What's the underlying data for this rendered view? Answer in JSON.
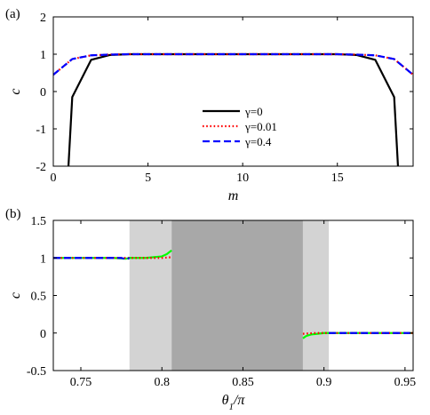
{
  "chart_data": [
    {
      "panel": "(a)",
      "type": "line",
      "xlabel": "m",
      "ylabel": "c",
      "xlim": [
        0,
        19
      ],
      "ylim": [
        -2,
        2
      ],
      "x_ticks": [
        0,
        5,
        10,
        15
      ],
      "y_ticks": [
        -2,
        -1,
        0,
        1,
        2
      ],
      "grid": false,
      "legend_position": "center-lower",
      "series": [
        {
          "name": "γ=0",
          "color": "#000000",
          "style": "solid",
          "x": [
            0.8,
            1,
            2,
            3,
            4,
            5,
            6,
            7,
            8,
            9,
            10,
            11,
            12,
            13,
            14,
            15,
            16,
            17,
            18,
            18.2
          ],
          "y": [
            -2.0,
            -0.15,
            0.85,
            0.98,
            1.0,
            1.0,
            1.0,
            1.0,
            1.0,
            1.0,
            1.0,
            1.0,
            1.0,
            1.0,
            1.0,
            1.0,
            0.98,
            0.85,
            -0.15,
            -2.0
          ]
        },
        {
          "name": "γ=0.01",
          "color": "#ff0000",
          "style": "dotted",
          "x": [
            0,
            1,
            2,
            3,
            4,
            5,
            6,
            7,
            8,
            9,
            10,
            11,
            12,
            13,
            14,
            15,
            16,
            17,
            18,
            19
          ],
          "y": [
            0.45,
            0.87,
            0.97,
            0.99,
            1.0,
            1.0,
            1.0,
            1.0,
            1.0,
            1.0,
            1.0,
            1.0,
            1.0,
            1.0,
            1.0,
            1.0,
            0.99,
            0.97,
            0.87,
            0.45
          ]
        },
        {
          "name": "γ=0.4",
          "color": "#0000ff",
          "style": "dashed",
          "x": [
            0,
            1,
            2,
            3,
            4,
            5,
            6,
            7,
            8,
            9,
            10,
            11,
            12,
            13,
            14,
            15,
            16,
            17,
            18,
            19
          ],
          "y": [
            0.45,
            0.87,
            0.97,
            0.99,
            1.0,
            1.0,
            1.0,
            1.0,
            1.0,
            1.0,
            1.0,
            1.0,
            1.0,
            1.0,
            1.0,
            1.0,
            0.99,
            0.97,
            0.87,
            0.45
          ]
        }
      ]
    },
    {
      "panel": "(b)",
      "type": "line",
      "xlabel": "θ1/π",
      "ylabel": "c",
      "xlim": [
        0.733,
        0.955
      ],
      "ylim": [
        -0.5,
        1.5
      ],
      "x_ticks": [
        0.75,
        0.8,
        0.85,
        0.9,
        0.95
      ],
      "y_ticks": [
        -0.5,
        0,
        0.5,
        1,
        1.5
      ],
      "grid": false,
      "regions": [
        {
          "x0": 0.78,
          "x1": 0.806,
          "color": "#d3d3d3"
        },
        {
          "x0": 0.806,
          "x1": 0.887,
          "color": "#a8a8a8"
        },
        {
          "x0": 0.887,
          "x1": 0.903,
          "color": "#d3d3d3"
        }
      ],
      "series": [
        {
          "color": "#00ff00",
          "style": "solid",
          "x": [
            0.733,
            0.74,
            0.75,
            0.76,
            0.77,
            0.778,
            0.78,
            0.785,
            0.79,
            0.795,
            0.8,
            0.803,
            0.806
          ],
          "y": [
            1.0,
            1.0,
            1.0,
            1.0,
            1.0,
            0.99,
            1.0,
            1.0,
            1.0,
            1.01,
            1.02,
            1.05,
            1.1
          ]
        },
        {
          "color": "#00ff00",
          "style": "solid",
          "x": [
            0.887,
            0.889,
            0.892,
            0.896,
            0.9,
            0.903,
            0.91,
            0.92,
            0.93,
            0.94,
            0.955
          ],
          "y": [
            -0.07,
            -0.04,
            -0.02,
            -0.01,
            0.0,
            0.0,
            0.0,
            0.0,
            0.0,
            0.0,
            0.0
          ]
        },
        {
          "color": "#ff0000",
          "style": "dotted",
          "x": [
            0.733,
            0.745,
            0.76,
            0.775,
            0.78,
            0.79,
            0.8,
            0.806
          ],
          "y": [
            1.0,
            1.0,
            1.0,
            1.0,
            1.0,
            1.0,
            1.0,
            1.01
          ]
        },
        {
          "color": "#ff0000",
          "style": "dotted",
          "x": [
            0.887,
            0.895,
            0.903,
            0.92,
            0.94,
            0.955
          ],
          "y": [
            -0.01,
            0.0,
            0.0,
            0.0,
            0.0,
            0.0
          ]
        },
        {
          "color": "#0000ff",
          "style": "dashed",
          "x": [
            0.733,
            0.745,
            0.76,
            0.775,
            0.778,
            0.78
          ],
          "y": [
            1.0,
            1.0,
            1.0,
            1.0,
            0.98,
            1.0
          ]
        },
        {
          "color": "#0000ff",
          "style": "dashed",
          "x": [
            0.903,
            0.915,
            0.93,
            0.945,
            0.955
          ],
          "y": [
            0.0,
            0.0,
            0.0,
            0.0,
            0.0
          ]
        }
      ]
    }
  ]
}
